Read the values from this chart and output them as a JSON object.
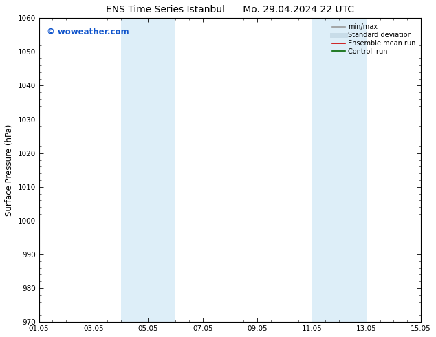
{
  "title_left": "ENS Time Series Istanbul",
  "title_right": "Mo. 29.04.2024 22 UTC",
  "ylabel": "Surface Pressure (hPa)",
  "ylim": [
    970,
    1060
  ],
  "yticks": [
    970,
    980,
    990,
    1000,
    1010,
    1020,
    1030,
    1040,
    1050,
    1060
  ],
  "xlim": [
    0,
    14
  ],
  "xtick_labels": [
    "01.05",
    "03.05",
    "05.05",
    "07.05",
    "09.05",
    "11.05",
    "13.05",
    "15.05"
  ],
  "xtick_positions": [
    0,
    2,
    4,
    6,
    8,
    10,
    12,
    14
  ],
  "shaded_regions": [
    {
      "start": 3,
      "end": 5,
      "color": "#ddeef8"
    },
    {
      "start": 10,
      "end": 12,
      "color": "#ddeef8"
    }
  ],
  "watermark_text": "© woweather.com",
  "watermark_color": "#1155cc",
  "watermark_fontsize": 8.5,
  "legend_entries": [
    {
      "label": "min/max",
      "color": "#999999",
      "lw": 1.2
    },
    {
      "label": "Standard deviation",
      "color": "#c8dce8",
      "lw": 5
    },
    {
      "label": "Ensemble mean run",
      "color": "#cc0000",
      "lw": 1.2
    },
    {
      "label": "Controll run",
      "color": "#006600",
      "lw": 1.2
    }
  ],
  "bg_color": "#ffffff",
  "title_fontsize": 10,
  "tick_fontsize": 7.5,
  "ylabel_fontsize": 8.5,
  "legend_fontsize": 7
}
